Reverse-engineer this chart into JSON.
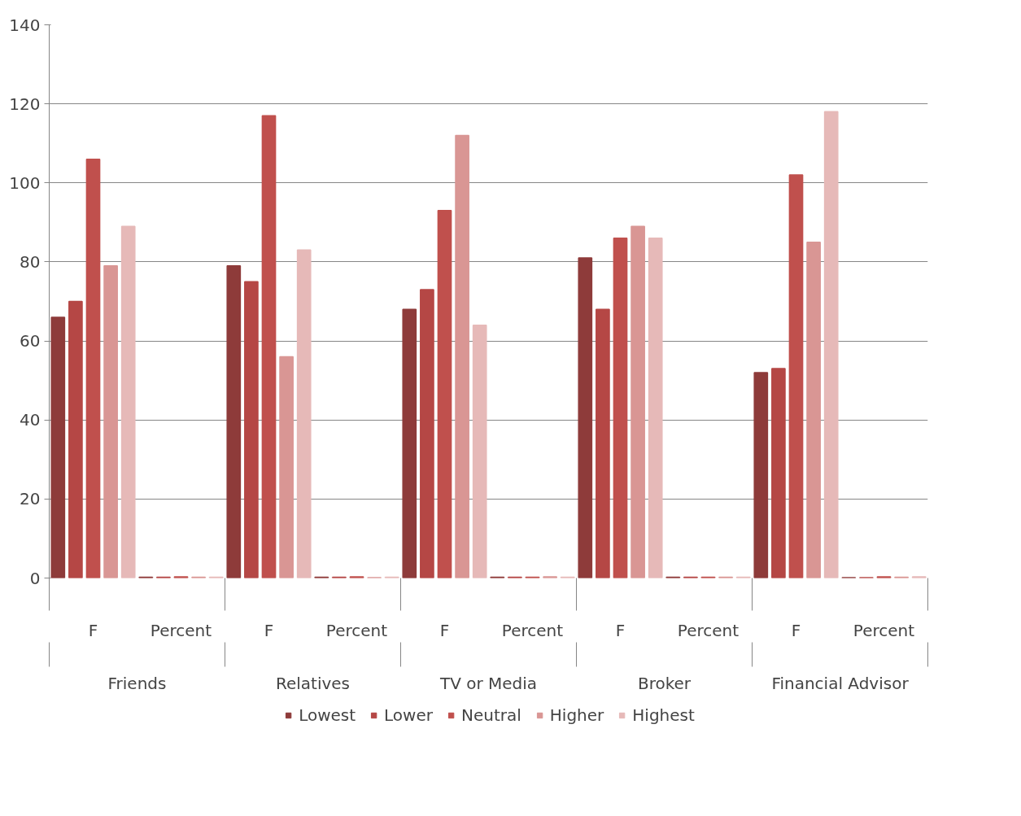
{
  "chart_data": {
    "type": "bar",
    "categories": [
      "F",
      "Percent",
      "F",
      "Percent",
      "F",
      "Percent",
      "F",
      "Percent",
      "F",
      "Percent"
    ],
    "annotations": [
      "Friends",
      "Relatives",
      "TV or Media",
      "Broker",
      "Financial Advisor"
    ],
    "series": [
      {
        "name": "Lowest",
        "color": "#8e3b3a",
        "values": [
          66,
          0.2,
          79,
          0.2,
          68,
          0.2,
          81,
          0.2,
          52,
          0.1
        ]
      },
      {
        "name": "Lower",
        "color": "#b54745",
        "values": [
          70,
          0.2,
          75,
          0.2,
          73,
          0.2,
          68,
          0.2,
          53,
          0.1
        ]
      },
      {
        "name": "Neutral",
        "color": "#c0504d",
        "values": [
          106,
          0.3,
          117,
          0.3,
          93,
          0.2,
          86,
          0.2,
          102,
          0.3
        ]
      },
      {
        "name": "Higher",
        "color": "#d99694",
        "values": [
          79,
          0.2,
          56,
          0.1,
          112,
          0.3,
          89,
          0.2,
          85,
          0.2
        ]
      },
      {
        "name": "Highest",
        "color": "#e6b9b8",
        "values": [
          89,
          0.2,
          83,
          0.2,
          64,
          0.2,
          86,
          0.2,
          118,
          0.3
        ]
      }
    ],
    "ylim": [
      0,
      140
    ],
    "yticks": [
      0,
      20,
      40,
      60,
      80,
      100,
      120,
      140
    ],
    "grid": "y",
    "legend": "bottom"
  }
}
